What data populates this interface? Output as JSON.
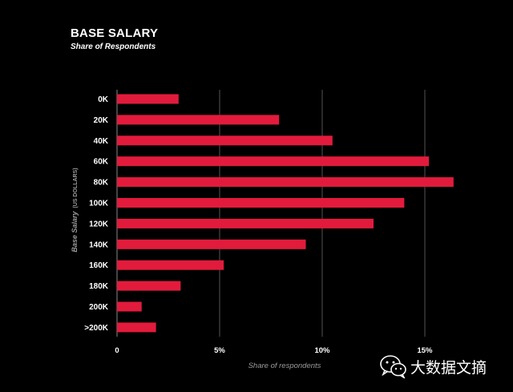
{
  "header": {
    "title": "BASE SALARY",
    "subtitle": "Share of Respondents"
  },
  "y_axis": {
    "label": "Base Salary",
    "unit": "(US DOLLARS)"
  },
  "watermark": {
    "text": "大数据文摘",
    "icon": "wechat-icon"
  },
  "colors": {
    "background": "#000000",
    "bar": "#e21b3c",
    "grid": "#555555",
    "axis_text": "#9a9a9a"
  },
  "chart_data": {
    "type": "bar",
    "orientation": "horizontal",
    "title": "BASE SALARY",
    "subtitle": "Share of Respondents",
    "xlabel": "Share of respondents",
    "ylabel": "Base Salary (US DOLLARS)",
    "categories": [
      "0K",
      "20K",
      "40K",
      "60K",
      "80K",
      "100K",
      "120K",
      "140K",
      "160K",
      "180K",
      "200K",
      ">200K"
    ],
    "values": [
      3.0,
      7.9,
      10.5,
      15.2,
      16.4,
      14.0,
      12.5,
      9.2,
      5.2,
      3.1,
      1.2,
      1.9
    ],
    "xlim": [
      0,
      18
    ],
    "xticks": [
      0,
      5,
      10,
      15
    ],
    "xtick_labels": [
      "0",
      "5%",
      "10%",
      "15%"
    ],
    "grid": true,
    "legend": "none"
  }
}
